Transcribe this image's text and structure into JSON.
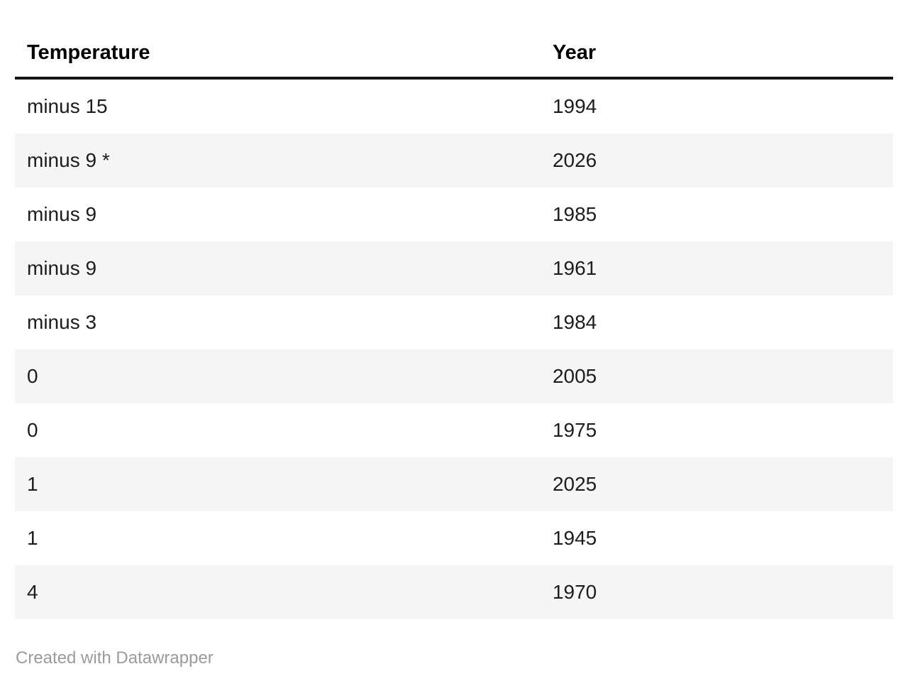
{
  "chart_data": {
    "type": "table",
    "columns": [
      "Temperature",
      "Year"
    ],
    "rows": [
      [
        "minus 15",
        "1994"
      ],
      [
        "minus 9 *",
        "2026"
      ],
      [
        "minus 9",
        "1985"
      ],
      [
        "minus 9",
        "1961"
      ],
      [
        "minus 3",
        "1984"
      ],
      [
        "0",
        "2005"
      ],
      [
        "0",
        "1975"
      ],
      [
        "1",
        "2025"
      ],
      [
        "1",
        "1945"
      ],
      [
        "4",
        "1970"
      ]
    ],
    "title": "",
    "stripe_pattern": "odd-white-even-gray",
    "legend_position": "none",
    "grid": "row-stripes"
  },
  "footer": {
    "credit": "Created with Datawrapper"
  },
  "colors": {
    "background": "#ffffff",
    "header_text": "#000000",
    "header_border": "#161616",
    "text": "#1d1d1d",
    "stripe": "#f5f5f5",
    "credit_text": "#9b9b9b"
  }
}
